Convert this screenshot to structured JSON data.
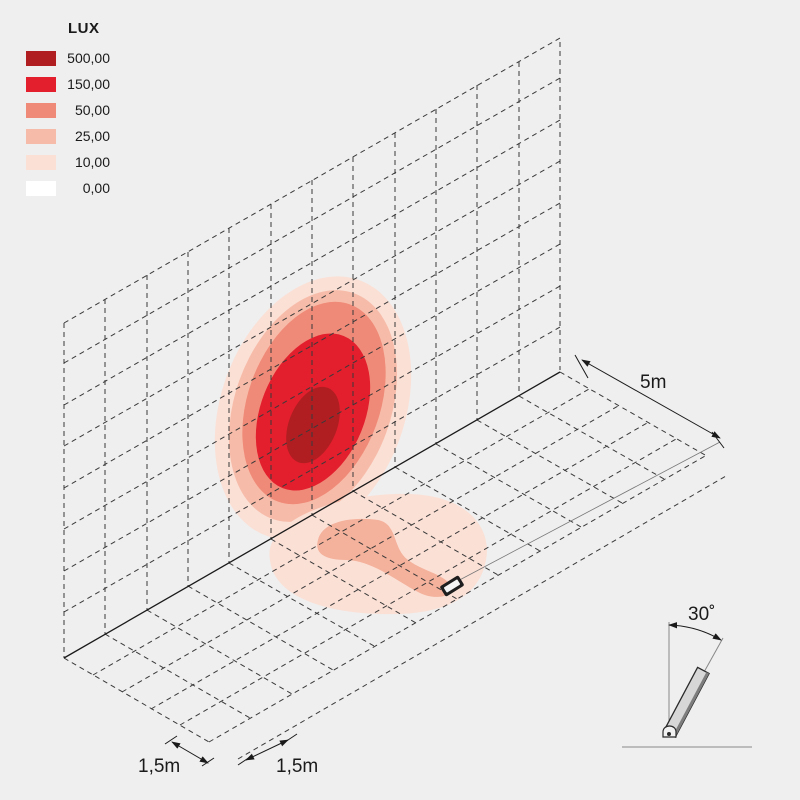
{
  "legend": {
    "title": "LUX",
    "items": [
      {
        "value": "500,00",
        "color": "#b01e22"
      },
      {
        "value": "150,00",
        "color": "#e31e2d"
      },
      {
        "value": "50,00",
        "color": "#f08a78"
      },
      {
        "value": "25,00",
        "color": "#f7bca9"
      },
      {
        "value": "10,00",
        "color": "#fbe0d6"
      },
      {
        "value": "0,00",
        "color": "#ffffff"
      }
    ]
  },
  "dimensions": {
    "depth": "5m",
    "grid_x1": "1,5m",
    "grid_x2": "1,5m",
    "tilt_angle": "30˚"
  },
  "colors": {
    "background": "#efefef",
    "grid_line": "#3a3a3a"
  }
}
